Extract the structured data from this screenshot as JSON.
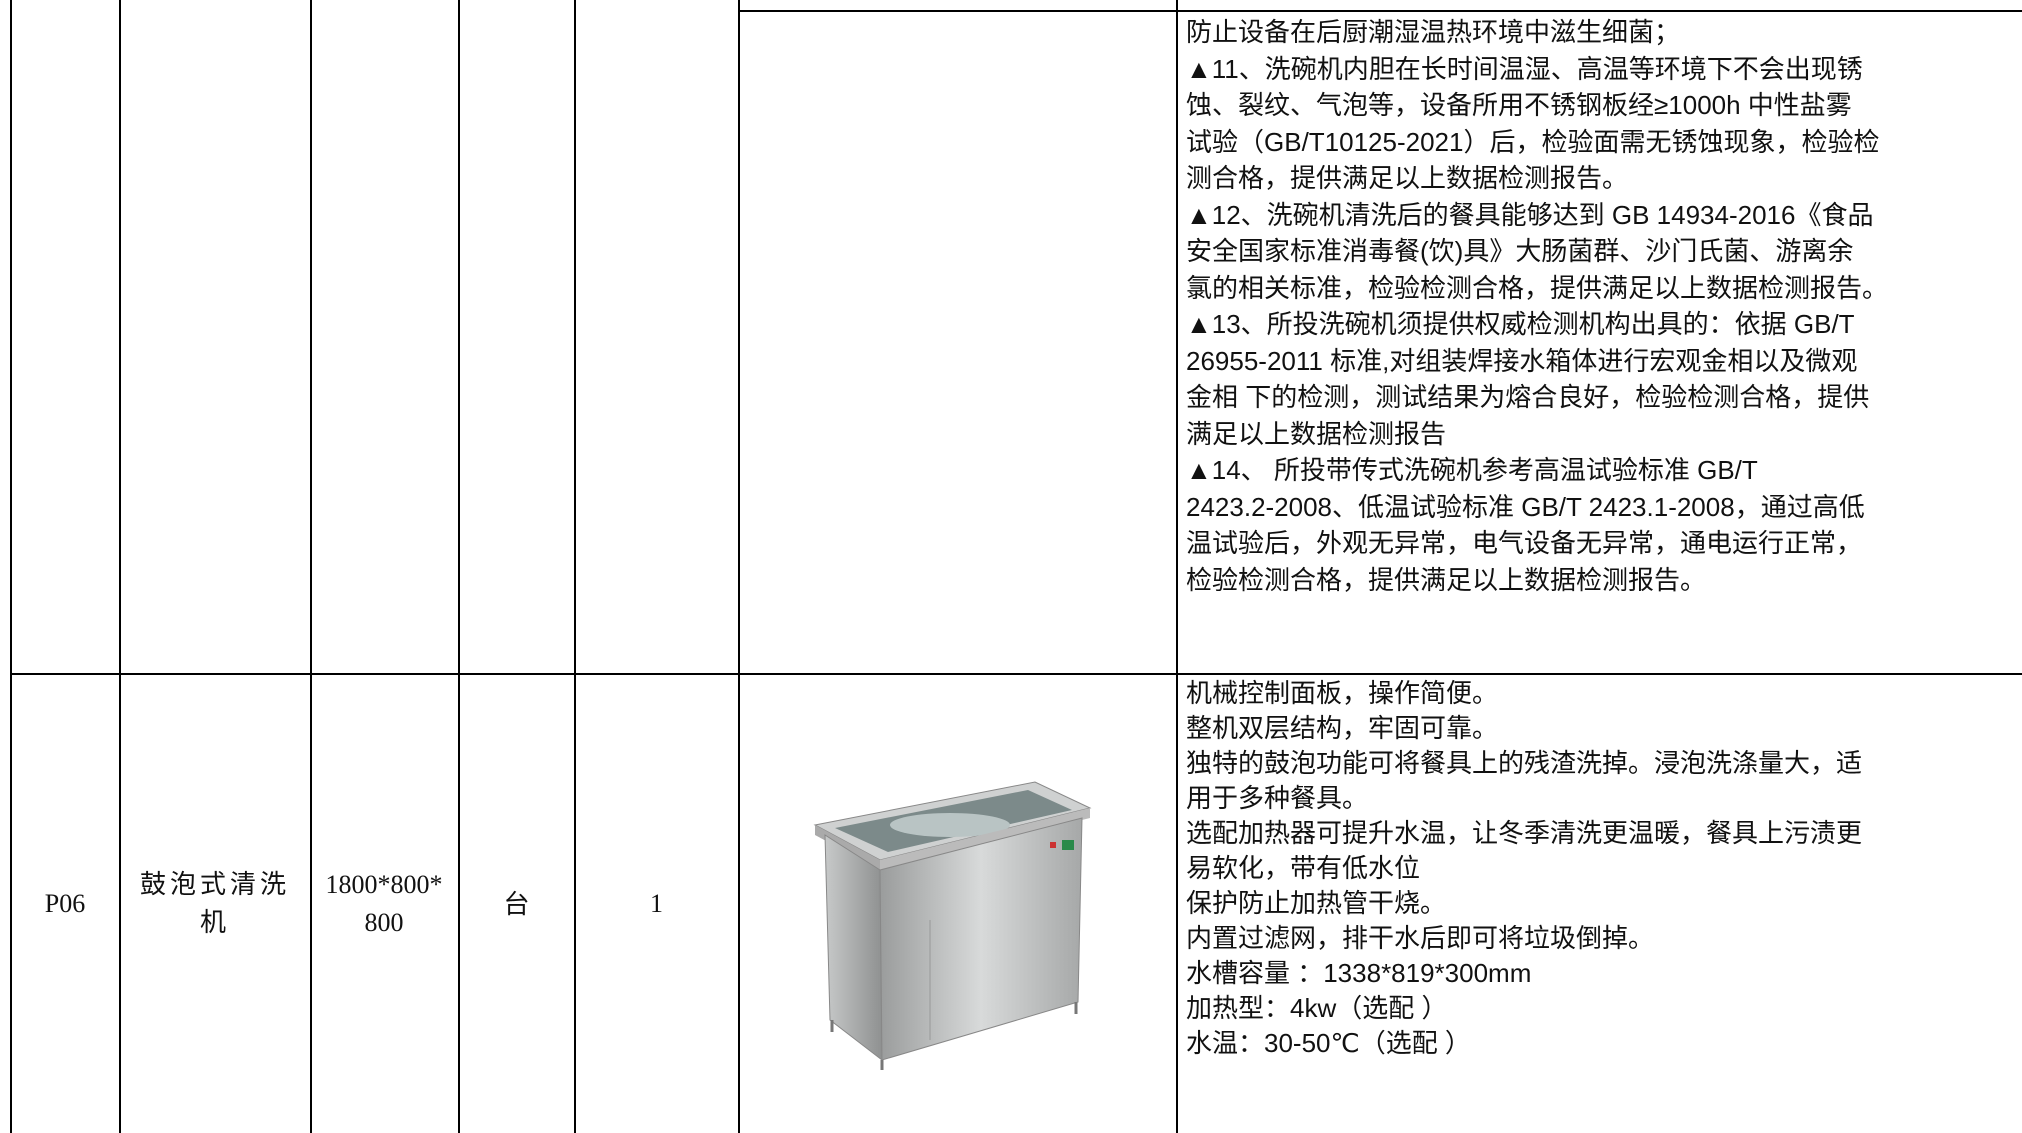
{
  "table": {
    "rows": [
      {
        "code": null,
        "name": null,
        "size": null,
        "unit": null,
        "qty": null,
        "description": [
          "防止设备在后厨潮湿温热环境中滋生细菌；",
          "▲11、洗碗机内胆在长时间温湿、高温等环境下不会出现锈",
          "蚀、裂纹、气泡等，设备所用不锈钢板经≥1000h 中性盐雾",
          "试验（GB/T10125-2021）后，检验面需无锈蚀现象，检验检",
          "测合格，提供满足以上数据检测报告。",
          "▲12、洗碗机清洗后的餐具能够达到 GB 14934-2016《食品",
          "安全国家标准消毒餐(饮)具》大肠菌群、沙门氏菌、游离余",
          "氯的相关标准，检验检测合格，提供满足以上数据检测报告。",
          "▲13、所投洗碗机须提供权威检测机构出具的：依据 GB/T",
          "26955-2011 标准,对组装焊接水箱体进行宏观金相以及微观",
          "金相 下的检测，测试结果为熔合良好，检验检测合格，提供",
          "满足以上数据检测报告",
          "▲14、 所投带传式洗碗机参考高温试验标准 GB/T",
          "2423.2-2008、低温试验标准 GB/T 2423.1-2008，通过高低",
          "温试验后，外观无异常，电气设备无异常，通电运行正常，",
          "检验检测合格，提供满足以上数据检测报告。"
        ]
      },
      {
        "code": "P06",
        "name": "鼓泡式清洗机",
        "size": "1800*800*800",
        "unit": "台",
        "qty": "1",
        "description": [
          "机械控制面板，操作简便。",
          "整机双层结构，牢固可靠。",
          "独特的鼓泡功能可将餐具上的残渣洗掉。浸泡洗涤量大，适",
          "用于多种餐具。",
          "选配加热器可提升水温，让冬季清洗更温暖，餐具上污渍更",
          "易软化，带有低水位",
          "保护防止加热管干烧。",
          "内置过滤网，排干水后即可将垃圾倒掉。",
          "水槽容量 ：1338*819*300mm",
          "加热型：4kw（选配 ）",
          "水温：30-50℃（选配 ）"
        ]
      }
    ]
  }
}
